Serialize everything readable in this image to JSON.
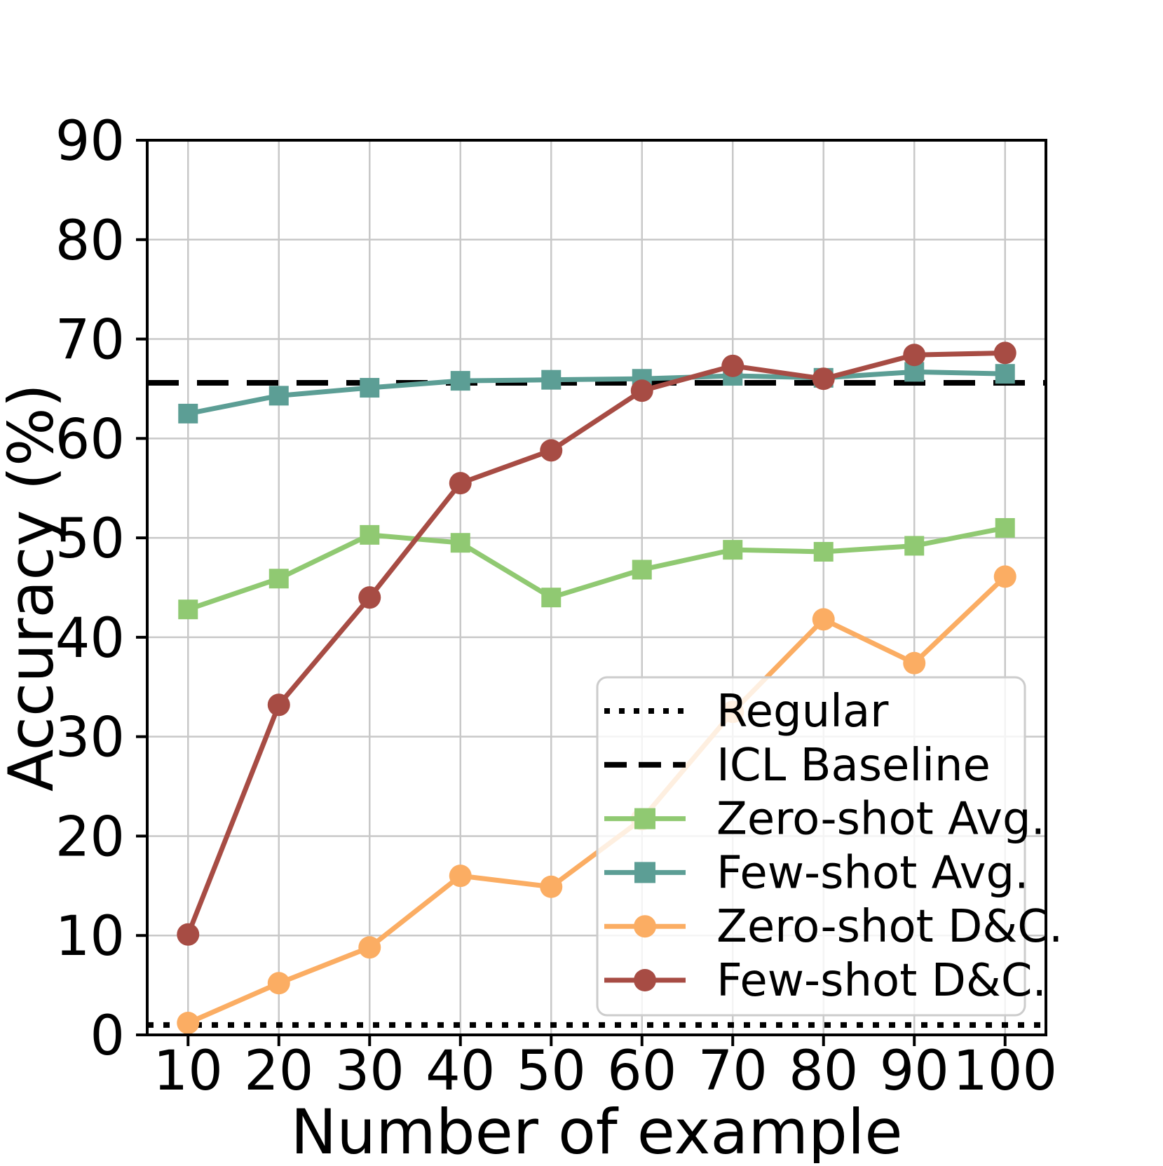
{
  "chart_data": {
    "type": "line",
    "title": "",
    "xlabel": "Number of example",
    "ylabel": "Accuracy (%)",
    "x": [
      10,
      20,
      30,
      40,
      50,
      60,
      70,
      80,
      90,
      100
    ],
    "xticks": [
      10,
      20,
      30,
      40,
      50,
      60,
      70,
      80,
      90,
      100
    ],
    "yticks": [
      0,
      10,
      20,
      30,
      40,
      50,
      60,
      70,
      80,
      90
    ],
    "xlim": [
      5.5,
      104.5
    ],
    "ylim": [
      0,
      90
    ],
    "grid": true,
    "grid_color": "#c8c8c8",
    "background": "#ffffff",
    "hlines": [
      {
        "name": "Regular",
        "value": 1.0,
        "style": "dotted",
        "color": "#000000"
      },
      {
        "name": "ICL Baseline",
        "value": 65.6,
        "style": "dashed",
        "color": "#000000"
      }
    ],
    "series": [
      {
        "name": "Zero-shot Avg.",
        "color": "#90c972",
        "marker": "square",
        "values": [
          42.8,
          45.9,
          50.3,
          49.5,
          44.0,
          46.8,
          48.8,
          48.6,
          49.2,
          51.0
        ]
      },
      {
        "name": "Few-shot Avg.",
        "color": "#5c9e95",
        "marker": "square",
        "values": [
          62.5,
          64.3,
          65.1,
          65.8,
          65.9,
          66.0,
          66.3,
          66.1,
          66.7,
          66.5
        ]
      },
      {
        "name": "Zero-shot D&C.",
        "color": "#fbad63",
        "marker": "circle",
        "values": [
          1.2,
          5.2,
          8.8,
          16.0,
          14.9,
          21.7,
          32.5,
          41.8,
          37.4,
          46.1
        ]
      },
      {
        "name": "Few-shot D&C.",
        "color": "#a74c44",
        "marker": "circle",
        "values": [
          10.1,
          33.2,
          44.0,
          55.5,
          58.8,
          64.8,
          67.3,
          66.0,
          68.4,
          68.6
        ]
      }
    ],
    "legend": {
      "position": "lower right",
      "entries": [
        "Regular",
        "ICL Baseline",
        "Zero-shot Avg.",
        "Few-shot Avg.",
        "Zero-shot D&C.",
        "Few-shot D&C."
      ]
    }
  }
}
